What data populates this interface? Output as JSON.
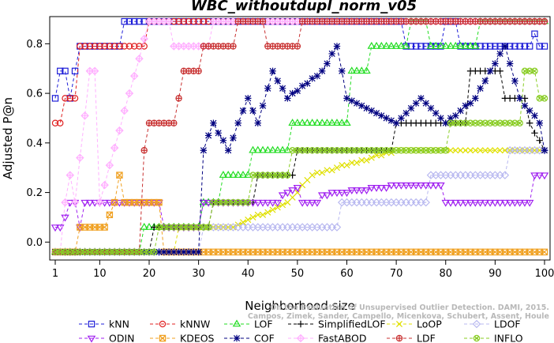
{
  "chart_data": {
    "type": "line",
    "title": "WBC_withoutdupl_norm_v05",
    "xlabel": "Neighborhood size",
    "ylabel": "Adjusted P@n",
    "xlim": [
      1,
      100
    ],
    "ylim": [
      -0.05,
      0.9
    ],
    "x_ticks": [
      1,
      10,
      20,
      30,
      40,
      50,
      60,
      70,
      80,
      90,
      100
    ],
    "y_ticks": [
      0.0,
      0.2,
      0.4,
      0.6,
      0.8
    ],
    "y_tick_labels": [
      "0.0",
      "0.2",
      "0.4",
      "0.6",
      "0.8"
    ],
    "grid": false,
    "legend_position": "bottom",
    "watermark": [
      "Campos, Zimek, Sander, Campello, Micenkova, Schubert, Assent, Houle",
      "On the Evaluation of Unsupervised Outlier Detection. DAMI, 2015."
    ],
    "series": [
      {
        "name": "kNN",
        "color": "#1f1fd8",
        "marker": "square",
        "segments": [
          [
            1,
            0.58
          ],
          [
            2,
            0.69
          ],
          [
            3,
            0.69
          ],
          [
            4,
            0.58
          ],
          [
            5,
            0.69
          ],
          [
            6,
            0.79
          ],
          [
            14,
            0.79
          ],
          [
            15,
            0.89
          ],
          [
            71,
            0.89
          ],
          [
            72,
            0.79
          ],
          [
            79,
            0.79
          ],
          [
            80,
            0.89
          ],
          [
            82,
            0.89
          ],
          [
            83,
            0.79
          ],
          [
            97,
            0.79
          ],
          [
            98,
            0.84
          ],
          [
            99,
            0.79
          ],
          [
            100,
            0.79
          ]
        ]
      },
      {
        "name": "kNNW",
        "color": "#e02020",
        "marker": "circle",
        "segments": [
          [
            1,
            0.48
          ],
          [
            2,
            0.48
          ],
          [
            3,
            0.58
          ],
          [
            5,
            0.58
          ],
          [
            6,
            0.79
          ],
          [
            19,
            0.79
          ],
          [
            20,
            0.89
          ],
          [
            100,
            0.89
          ]
        ]
      },
      {
        "name": "LOF",
        "color": "#22dd22",
        "marker": "triangle-up",
        "segments": [
          [
            1,
            -0.04
          ],
          [
            18,
            -0.04
          ],
          [
            19,
            0.06
          ],
          [
            30,
            0.06
          ],
          [
            31,
            0.16
          ],
          [
            34,
            0.16
          ],
          [
            35,
            0.27
          ],
          [
            40,
            0.27
          ],
          [
            41,
            0.37
          ],
          [
            48,
            0.37
          ],
          [
            49,
            0.48
          ],
          [
            60,
            0.48
          ],
          [
            61,
            0.69
          ],
          [
            64,
            0.69
          ],
          [
            65,
            0.79
          ],
          [
            72,
            0.79
          ],
          [
            73,
            0.89
          ],
          [
            76,
            0.89
          ],
          [
            77,
            0.79
          ],
          [
            86,
            0.79
          ],
          [
            87,
            0.89
          ],
          [
            100,
            0.89
          ]
        ]
      },
      {
        "name": "SimplifiedLOF",
        "color": "#000000",
        "marker": "plus",
        "segments": [
          [
            1,
            -0.04
          ],
          [
            20,
            -0.04
          ],
          [
            21,
            0.06
          ],
          [
            32,
            0.06
          ],
          [
            33,
            0.16
          ],
          [
            41,
            0.16
          ],
          [
            42,
            0.27
          ],
          [
            49,
            0.27
          ],
          [
            50,
            0.37
          ],
          [
            69,
            0.37
          ],
          [
            70,
            0.48
          ],
          [
            84,
            0.48
          ],
          [
            85,
            0.69
          ],
          [
            91,
            0.69
          ],
          [
            92,
            0.58
          ],
          [
            96,
            0.58
          ],
          [
            97,
            0.48
          ],
          [
            100,
            0.37
          ]
        ]
      },
      {
        "name": "LoOP",
        "color": "#e0e000",
        "marker": "x",
        "segments": [
          [
            1,
            -0.04
          ],
          [
            25,
            -0.04
          ],
          [
            26,
            0.06
          ],
          [
            36,
            0.06
          ],
          [
            37,
            0.06
          ],
          [
            48,
            0.16
          ],
          [
            53,
            0.27
          ],
          [
            70,
            0.37
          ],
          [
            100,
            0.37
          ]
        ]
      },
      {
        "name": "LDOF",
        "color": "#b8b8f0",
        "marker": "diamond",
        "segments": [
          [
            1,
            -0.04
          ],
          [
            30,
            -0.04
          ],
          [
            31,
            0.06
          ],
          [
            58,
            0.06
          ],
          [
            59,
            0.16
          ],
          [
            76,
            0.16
          ],
          [
            77,
            0.27
          ],
          [
            92,
            0.27
          ],
          [
            93,
            0.37
          ],
          [
            100,
            0.37
          ]
        ]
      },
      {
        "name": "ODIN",
        "color": "#a020f0",
        "marker": "triangle-down",
        "segments": [
          [
            1,
            0.06
          ],
          [
            2,
            0.06
          ],
          [
            3,
            0.1
          ],
          [
            4,
            0.16
          ],
          [
            5,
            0.16
          ],
          [
            6,
            0.06
          ],
          [
            7,
            0.16
          ],
          [
            22,
            0.16
          ],
          [
            23,
            0.06
          ],
          [
            30,
            0.06
          ],
          [
            31,
            0.16
          ],
          [
            46,
            0.16
          ],
          [
            47,
            0.19
          ],
          [
            50,
            0.22
          ],
          [
            51,
            0.16
          ],
          [
            54,
            0.16
          ],
          [
            55,
            0.19
          ],
          [
            70,
            0.23
          ],
          [
            79,
            0.23
          ],
          [
            80,
            0.16
          ],
          [
            97,
            0.16
          ],
          [
            98,
            0.27
          ],
          [
            100,
            0.27
          ]
        ]
      },
      {
        "name": "KDEOS",
        "color": "#f0a020",
        "marker": "square-x",
        "segments": [
          [
            1,
            -0.04
          ],
          [
            5,
            -0.04
          ],
          [
            6,
            0.06
          ],
          [
            11,
            0.06
          ],
          [
            13,
            0.16
          ],
          [
            14,
            0.27
          ],
          [
            15,
            0.16
          ],
          [
            22,
            0.16
          ],
          [
            23,
            -0.04
          ],
          [
            100,
            -0.04
          ]
        ]
      },
      {
        "name": "COF",
        "color": "#000080",
        "marker": "asterisk",
        "segments": [
          [
            1,
            -0.04
          ],
          [
            30,
            -0.04
          ],
          [
            31,
            0.37
          ],
          [
            33,
            0.48
          ],
          [
            36,
            0.37
          ],
          [
            40,
            0.58
          ],
          [
            42,
            0.48
          ],
          [
            45,
            0.69
          ],
          [
            48,
            0.58
          ],
          [
            55,
            0.69
          ],
          [
            58,
            0.79
          ],
          [
            60,
            0.58
          ],
          [
            70,
            0.48
          ],
          [
            75,
            0.58
          ],
          [
            80,
            0.48
          ],
          [
            86,
            0.58
          ],
          [
            92,
            0.79
          ],
          [
            95,
            0.58
          ],
          [
            99,
            0.48
          ],
          [
            100,
            0.37
          ]
        ]
      },
      {
        "name": "FastABOD",
        "color": "#ffb0ff",
        "marker": "diamond-plus",
        "segments": [
          [
            1,
            -0.04
          ],
          [
            2,
            -0.04
          ],
          [
            3,
            0.16
          ],
          [
            4,
            0.27
          ],
          [
            5,
            0.16
          ],
          [
            8,
            0.69
          ],
          [
            9,
            0.69
          ],
          [
            10,
            0.16
          ],
          [
            20,
            0.89
          ],
          [
            24,
            0.89
          ],
          [
            25,
            0.79
          ],
          [
            32,
            0.79
          ],
          [
            33,
            0.89
          ],
          [
            100,
            0.89
          ]
        ]
      },
      {
        "name": "LDF",
        "color": "#c83030",
        "marker": "circle-plus",
        "segments": [
          [
            1,
            -0.04
          ],
          [
            18,
            -0.04
          ],
          [
            19,
            0.37
          ],
          [
            20,
            0.48
          ],
          [
            25,
            0.48
          ],
          [
            26,
            0.58
          ],
          [
            27,
            0.69
          ],
          [
            30,
            0.69
          ],
          [
            31,
            0.79
          ],
          [
            37,
            0.79
          ],
          [
            38,
            0.89
          ],
          [
            43,
            0.89
          ],
          [
            44,
            0.79
          ],
          [
            50,
            0.79
          ],
          [
            51,
            0.89
          ],
          [
            100,
            0.89
          ]
        ]
      },
      {
        "name": "INFLO",
        "color": "#88cc22",
        "marker": "circle-x",
        "segments": [
          [
            1,
            -0.04
          ],
          [
            21,
            -0.04
          ],
          [
            22,
            0.06
          ],
          [
            32,
            0.06
          ],
          [
            33,
            0.16
          ],
          [
            40,
            0.16
          ],
          [
            41,
            0.27
          ],
          [
            48,
            0.27
          ],
          [
            49,
            0.37
          ],
          [
            80,
            0.37
          ],
          [
            81,
            0.48
          ],
          [
            95,
            0.48
          ],
          [
            96,
            0.69
          ],
          [
            98,
            0.69
          ],
          [
            99,
            0.58
          ],
          [
            100,
            0.58
          ]
        ]
      }
    ]
  }
}
